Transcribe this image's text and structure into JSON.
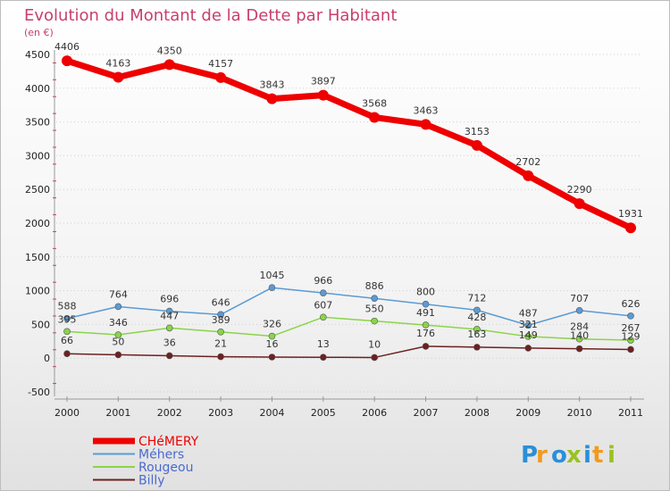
{
  "chart_data": {
    "type": "line",
    "title": "Evolution du Montant de la Dette par Habitant",
    "subtitle": "(en €)",
    "categories": [
      "2000",
      "2001",
      "2002",
      "2003",
      "2004",
      "2005",
      "2006",
      "2007",
      "2008",
      "2009",
      "2010",
      "2011"
    ],
    "ylim": [
      -500,
      4500
    ],
    "yticks": [
      -500,
      0,
      500,
      1000,
      1500,
      2000,
      2500,
      3000,
      3500,
      4000,
      4500
    ],
    "series": [
      {
        "name": "CHéMERY",
        "color": "#ee0000",
        "values": [
          4406,
          4163,
          4350,
          4157,
          3843,
          3897,
          3568,
          3463,
          3153,
          2702,
          2290,
          1931
        ]
      },
      {
        "name": "Méhers",
        "color": "#5b9bd5",
        "values": [
          588,
          764,
          696,
          646,
          1045,
          966,
          886,
          800,
          712,
          487,
          707,
          626
        ]
      },
      {
        "name": "Rougeou",
        "color": "#8ad448",
        "values": [
          395,
          346,
          447,
          389,
          326,
          607,
          550,
          491,
          428,
          321,
          284,
          267
        ]
      },
      {
        "name": "Billy",
        "color": "#6d2020",
        "values": [
          66,
          50,
          36,
          21,
          16,
          13,
          10,
          176,
          163,
          149,
          140,
          129
        ]
      }
    ],
    "legend_position": "bottom-left"
  },
  "logo": {
    "text": "Proxiti",
    "colors": [
      "#2a8fd8",
      "#f29a1c",
      "#2a8fd8",
      "#9ac21f",
      "#2a8fd8",
      "#f29a1c",
      "#9ac21f"
    ]
  }
}
